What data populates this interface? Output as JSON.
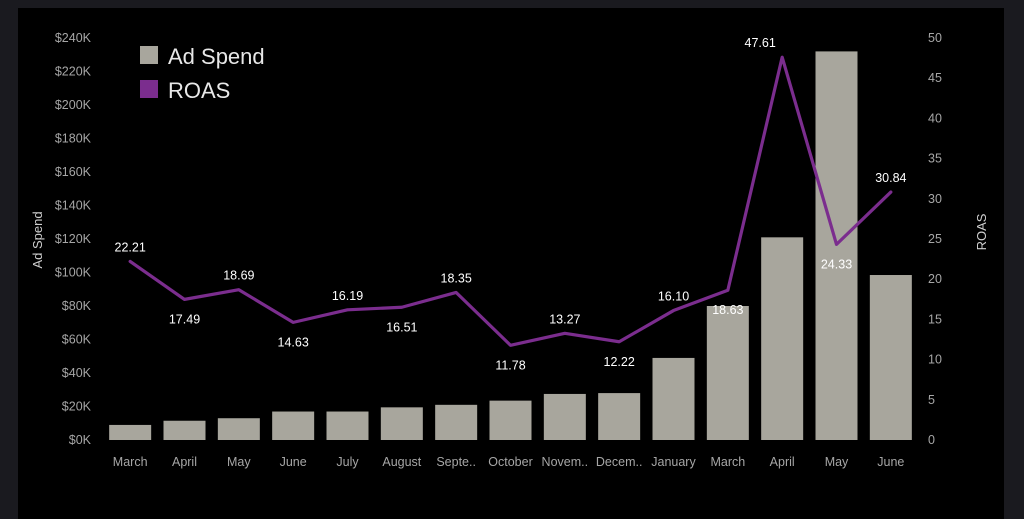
{
  "chart_data": {
    "type": "bar",
    "categories": [
      "March",
      "April",
      "May",
      "June",
      "July",
      "August",
      "Septe..",
      "October",
      "Novem..",
      "Decem..",
      "January",
      "March",
      "April",
      "May",
      "June"
    ],
    "series": [
      {
        "name": "Ad Spend",
        "axis": "left",
        "type": "bar",
        "color": "#a8a69d",
        "values": [
          9000,
          11500,
          13000,
          17000,
          17000,
          19500,
          21000,
          23500,
          27500,
          28000,
          49000,
          80000,
          121000,
          232000,
          98500
        ]
      },
      {
        "name": "ROAS",
        "axis": "right",
        "type": "line",
        "color": "#7b2d8e",
        "values": [
          22.21,
          17.49,
          18.69,
          14.63,
          16.19,
          16.51,
          18.35,
          11.78,
          13.27,
          12.22,
          16.1,
          18.63,
          47.61,
          24.33,
          30.84
        ],
        "labels": [
          "22.21",
          "17.49",
          "18.69",
          "14.63",
          "16.19",
          "16.51",
          "18.35",
          "11.78",
          "13.27",
          "12.22",
          "16.10",
          "18.63",
          "47.61",
          "24.33",
          "30.84"
        ]
      }
    ],
    "ylabel": "Ad Spend",
    "y2label": "ROAS",
    "ylim": [
      0,
      240000
    ],
    "y2lim": [
      0,
      50
    ],
    "yticks": [
      0,
      20000,
      40000,
      60000,
      80000,
      100000,
      120000,
      140000,
      160000,
      180000,
      200000,
      220000,
      240000
    ],
    "ytick_labels": [
      "$0K",
      "$20K",
      "$40K",
      "$60K",
      "$80K",
      "$100K",
      "$120K",
      "$140K",
      "$160K",
      "$180K",
      "$200K",
      "$220K",
      "$240K"
    ],
    "y2ticks": [
      0,
      5,
      10,
      15,
      20,
      25,
      30,
      35,
      40,
      45,
      50
    ],
    "y2tick_labels": [
      "0",
      "5",
      "10",
      "15",
      "20",
      "25",
      "30",
      "35",
      "40",
      "45",
      "50"
    ],
    "legend": [
      {
        "label": "Ad Spend",
        "color": "#a8a69d"
      },
      {
        "label": "ROAS",
        "color": "#7b2d8e"
      }
    ],
    "legend_position": "top-left",
    "grid": false
  }
}
